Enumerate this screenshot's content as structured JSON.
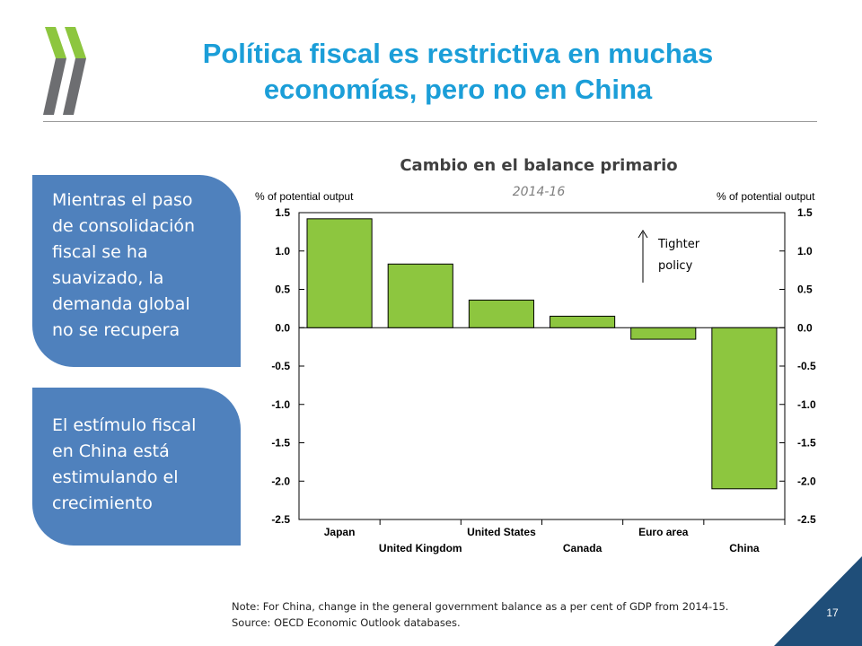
{
  "slide": {
    "title_line1": "Política fiscal es restrictiva en muchas",
    "title_line2": "economías, pero no en China",
    "page_number": "17",
    "accent_color": "#1b9ed8",
    "box_color": "#4f81bd",
    "logo_colors": [
      "#8dc63f",
      "#6d6e71"
    ]
  },
  "boxes": [
    {
      "lines": [
        "Mientras el paso",
        "de consolidación",
        "fiscal se ha",
        "suavizado, la",
        "demanda global",
        "no se recupera"
      ]
    },
    {
      "lines": [
        "El estímulo fiscal",
        "en China está",
        "estimulando el",
        "crecimiento"
      ]
    }
  ],
  "chart_data": {
    "type": "bar",
    "title": "Cambio en el balance primario",
    "subtitle": "2014-16",
    "ylabel_left": "% of potential output",
    "ylabel_right": "% of potential output",
    "categories": [
      "Japan",
      "United Kingdom",
      "United States",
      "Canada",
      "Euro area",
      "China"
    ],
    "values": [
      1.42,
      0.83,
      0.36,
      0.15,
      -0.15,
      -2.1
    ],
    "ylim": [
      -2.5,
      1.5
    ],
    "yticks": [
      "1.5",
      "1.0",
      "0.5",
      "0.0",
      "-0.5",
      "-1.0",
      "-1.5",
      "-2.0",
      "-2.5"
    ],
    "bar_color": "#8dc63f",
    "annotation": {
      "line1": "Tighter",
      "line2": "policy",
      "direction": "up"
    }
  },
  "note": {
    "line1": "Note: For China, change in the general government balance as a per cent of GDP from 2014-15.",
    "line2": "Source: OECD Economic Outlook databases."
  }
}
